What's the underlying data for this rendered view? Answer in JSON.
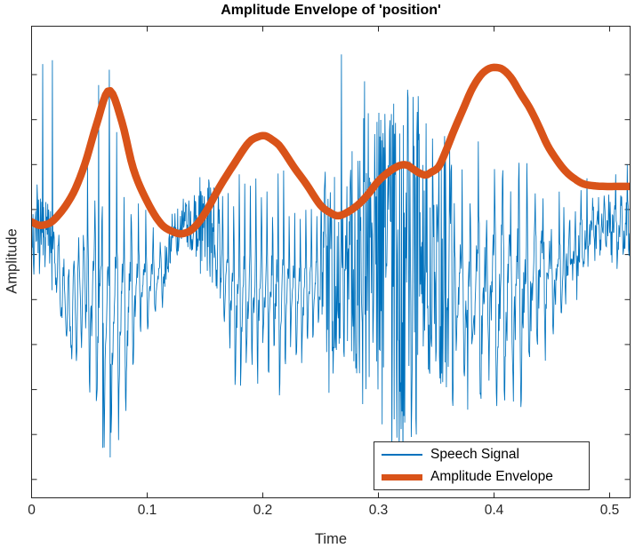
{
  "chart_data": {
    "type": "line",
    "title": "Amplitude Envelope of 'position'",
    "xlabel": "Time",
    "ylabel": "Amplitude",
    "xlim": [
      0,
      0.519
    ],
    "xticks": [
      0,
      0.1,
      0.2,
      0.3,
      0.4,
      0.5
    ],
    "xtick_labels": [
      "0",
      "0.1",
      "0.2",
      "0.3",
      "0.4",
      "0.5"
    ],
    "ytick_count": 10,
    "ytick_labels_visible": false,
    "grid": false,
    "legend_position": "inside-lower-right",
    "axis_color": "#262626",
    "series": [
      {
        "name": "Speech Signal",
        "color": "#0072BD",
        "line_width": 0.85,
        "kind": "speech-waveform",
        "segments": [
          {
            "t": [
              0.0,
              0.018
            ],
            "type": "noise",
            "k_noise": 0.95
          },
          {
            "t": [
              0.018,
              0.048
            ],
            "type": "rumble",
            "k": 0.55,
            "f": 230
          },
          {
            "t": [
              0.048,
              0.115
            ],
            "type": "voiced",
            "period": 0.0063,
            "k_up": 1.0,
            "k_dn": 1.05,
            "k_noise": 0.3
          },
          {
            "t": [
              0.115,
              0.165
            ],
            "type": "noise",
            "k_noise": 0.8
          },
          {
            "t": [
              0.165,
              0.25
            ],
            "type": "voiced",
            "period": 0.0048,
            "k_up": 0.95,
            "k_dn": 0.95,
            "k_noise": 0.3
          },
          {
            "t": [
              0.25,
              0.335
            ],
            "type": "noise",
            "k_noise": 1.8
          },
          {
            "t": [
              0.335,
              0.365
            ],
            "type": "noise",
            "k_noise": 1.2
          },
          {
            "t": [
              0.365,
              0.46
            ],
            "type": "voiced",
            "period": 0.007,
            "k_up": 0.55,
            "k_dn": 0.75,
            "k_noise": 0.35
          },
          {
            "t": [
              0.46,
              0.52
            ],
            "type": "mixed",
            "period": 0.005,
            "k_up": 0.6,
            "k_dn": 0.6,
            "k_noise": 0.55
          }
        ],
        "center_offset_keypoints": {
          "t": [
            0,
            0.012,
            0.02,
            0.033,
            0.042,
            0.05,
            0.112,
            0.125,
            0.16,
            0.172,
            0.46,
            0.49,
            0.52
          ],
          "a": [
            0.163,
            0.14,
            0.047,
            -0.28,
            -0.14,
            0,
            0,
            0.177,
            0.177,
            0,
            0.093,
            0.26,
            0.26
          ]
        },
        "landmark_spikes": [
          {
            "t": 0.0095,
            "a": 1.06
          },
          {
            "t": 0.018,
            "a": 1.08
          },
          {
            "t": 0.058,
            "a": 0.95
          },
          {
            "t": 0.0615,
            "a": -0.95
          },
          {
            "t": 0.067,
            "a": 1.03
          },
          {
            "t": 0.068,
            "a": -1.0
          },
          {
            "t": 0.268,
            "a": 1.11
          },
          {
            "t": 0.288,
            "a": 0.97
          },
          {
            "t": 0.377,
            "a": -0.75
          }
        ]
      },
      {
        "name": "Amplitude Envelope",
        "color": "#D95319",
        "line_width": 8.5,
        "kind": "smooth-envelope",
        "keypoints": {
          "t": [
            0,
            0.008,
            0.019,
            0.035,
            0.046,
            0.056,
            0.067,
            0.078,
            0.088,
            0.1,
            0.112,
            0.123,
            0.131,
            0.14,
            0.15,
            0.163,
            0.175,
            0.188,
            0.196,
            0.202,
            0.209,
            0.215,
            0.227,
            0.238,
            0.25,
            0.259,
            0.265,
            0.272,
            0.281,
            0.29,
            0.3,
            0.31,
            0.319,
            0.325,
            0.33,
            0.336,
            0.341,
            0.346,
            0.352,
            0.358,
            0.365,
            0.373,
            0.381,
            0.389,
            0.396,
            0.402,
            0.408,
            0.415,
            0.423,
            0.431,
            0.439,
            0.446,
            0.454,
            0.462,
            0.47,
            0.477,
            0.487,
            0.496,
            0.507,
            0.519
          ],
          "a": [
            0.233,
            0.215,
            0.242,
            0.372,
            0.535,
            0.74,
            0.921,
            0.76,
            0.512,
            0.34,
            0.223,
            0.18,
            0.172,
            0.2,
            0.279,
            0.42,
            0.535,
            0.65,
            0.679,
            0.684,
            0.66,
            0.628,
            0.52,
            0.428,
            0.32,
            0.279,
            0.265,
            0.28,
            0.316,
            0.37,
            0.447,
            0.5,
            0.53,
            0.53,
            0.51,
            0.488,
            0.479,
            0.495,
            0.521,
            0.6,
            0.707,
            0.82,
            0.93,
            1.005,
            1.037,
            1.042,
            1.03,
            0.986,
            0.905,
            0.828,
            0.73,
            0.637,
            0.56,
            0.498,
            0.458,
            0.433,
            0.422,
            0.419,
            0.419,
            0.419
          ]
        }
      }
    ]
  }
}
